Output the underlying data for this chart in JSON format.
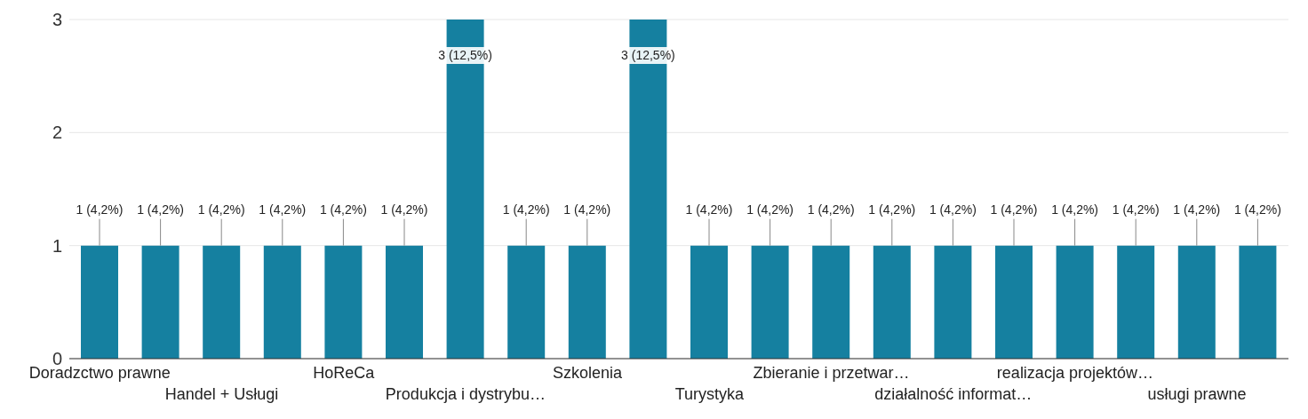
{
  "chart_data": {
    "type": "bar",
    "categories": [
      "Doradzctwo prawne",
      null,
      "Handel + Usługi",
      null,
      "HoReCa",
      null,
      "Produkcja i dystrybu…",
      null,
      "Szkolenia",
      null,
      "Turystyka",
      null,
      "Zbieranie i przetwar…",
      null,
      "działalność informat…",
      null,
      "realizacja projektów…",
      null,
      "usługi prawne",
      null
    ],
    "values": [
      1,
      1,
      1,
      1,
      1,
      1,
      3,
      1,
      1,
      3,
      1,
      1,
      1,
      1,
      1,
      1,
      1,
      1,
      1,
      1
    ],
    "value_labels": [
      "1 (4,2%)",
      "1 (4,2%)",
      "1 (4,2%)",
      "1 (4,2%)",
      "1 (4,2%)",
      "1 (4,2%)",
      "3 (12,5%)",
      "1 (4,2%)",
      "1 (4,2%)",
      "3 (12,5%)",
      "1 (4,2%)",
      "1 (4,2%)",
      "1 (4,2%)",
      "1 (4,2%)",
      "1 (4,2%)",
      "1 (4,2%)",
      "1 (4,2%)",
      "1 (4,2%)",
      "1 (4,2%)",
      "1 (4,2%)"
    ],
    "color": "#1580a0",
    "ylim": [
      0,
      3
    ],
    "yticks": [
      0,
      1,
      2,
      3
    ],
    "grid": "y"
  }
}
